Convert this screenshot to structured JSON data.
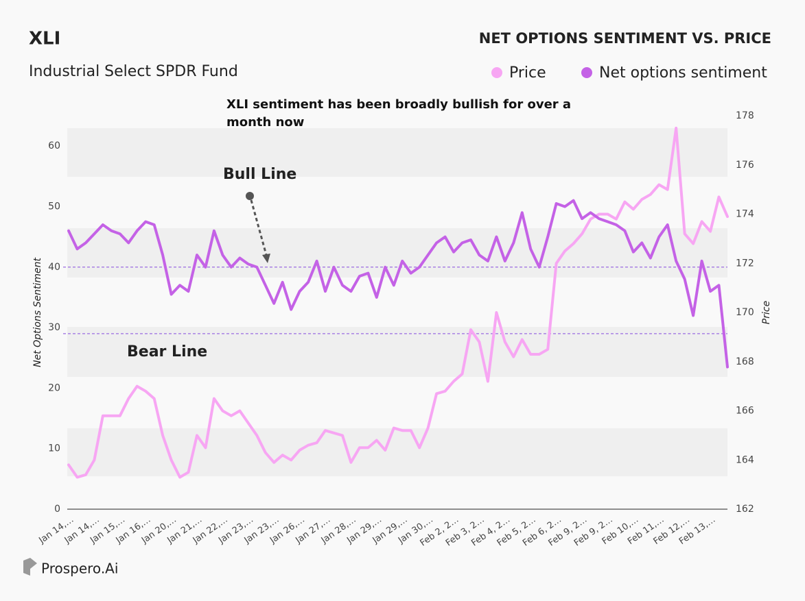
{
  "chart_data": {
    "type": "line",
    "title": "XLI",
    "subtitle": "Industrial Select SPDR Fund",
    "chart_title": "NET OPTIONS SENTIMENT VS. PRICE",
    "annotation": "XLI sentiment has been broadly bullish for over a month now",
    "y_label": "Net Options Sentiment",
    "y2_label": "Price",
    "branding": "Prospero.Ai",
    "categories": [
      "Jan 14,…",
      null,
      null,
      "Jan 14,…",
      null,
      null,
      "Jan 15,…",
      null,
      null,
      "Jan 16,…",
      null,
      null,
      "Jan 20,…",
      null,
      null,
      "Jan 21,…",
      null,
      null,
      "Jan 22,…",
      null,
      null,
      "Jan 23,…",
      null,
      null,
      "Jan 23,…",
      null,
      null,
      "Jan 26,…",
      null,
      null,
      "Jan 27,…",
      null,
      null,
      "Jan 28,…",
      null,
      null,
      "Jan 29,…",
      null,
      null,
      "Jan 29,…",
      null,
      null,
      "Jan 30,…",
      null,
      null,
      "Feb 2, 2…",
      null,
      null,
      "Feb 3, 2…",
      null,
      null,
      "Feb 4, 2…",
      null,
      null,
      "Feb 5, 2…",
      null,
      null,
      "Feb 6, 2…",
      null,
      null,
      "Feb 9, 2…",
      null,
      null,
      "Feb 9, 2…",
      null,
      null,
      "Feb 10,…",
      null,
      null,
      "Feb 11,…",
      null,
      null,
      "Feb 12,…",
      null,
      null,
      "Feb 13,…",
      null,
      null
    ],
    "series": [
      {
        "name": "Price",
        "color": "#f7a6f3",
        "axis": "y2",
        "values": [
          163.8,
          163.3,
          163.4,
          164,
          165.8,
          165.8,
          165.8,
          166.5,
          167,
          166.8,
          166.5,
          165,
          164,
          163.3,
          163.5,
          165,
          164.5,
          166.5,
          166,
          165.8,
          166,
          165.5,
          165,
          164.3,
          163.9,
          164.2,
          164,
          164.4,
          164.6,
          164.7,
          165.2,
          165.1,
          165,
          163.9,
          164.5,
          164.5,
          164.8,
          164.4,
          165.3,
          165.2,
          165.2,
          164.5,
          165.3,
          166.7,
          166.8,
          167.2,
          167.5,
          169.3,
          168.8,
          167.2,
          170,
          168.8,
          168.2,
          168.9,
          168.3,
          168.3,
          168.5,
          172,
          172.5,
          172.8,
          173.2,
          173.8,
          174,
          174,
          173.8,
          174.5,
          174.2,
          174.6,
          174.8,
          175.2,
          175,
          177.5,
          173.2,
          172.8,
          173.7,
          173.3,
          174.7,
          173.9
        ]
      },
      {
        "name": "Net options sentiment",
        "color": "#c462e6",
        "values": [
          46,
          43,
          44,
          45.5,
          47,
          46,
          45.5,
          44,
          46,
          47.5,
          47,
          42,
          35.5,
          37,
          36,
          42,
          40,
          46,
          42,
          40,
          41.5,
          40.5,
          40,
          37,
          34,
          37.5,
          33,
          36,
          37.5,
          41,
          36,
          40,
          37,
          36,
          38.5,
          39,
          35,
          40,
          37,
          41,
          39,
          40,
          42,
          44,
          45,
          42.5,
          44,
          44.5,
          42,
          41,
          45,
          41,
          44,
          49,
          43,
          40,
          45,
          50.5,
          50,
          51,
          48,
          49,
          48,
          47.5,
          47,
          46,
          42.5,
          44,
          41.5,
          45,
          47,
          41,
          38,
          32,
          41,
          36,
          37,
          23.5
        ]
      }
    ],
    "reference_lines": [
      {
        "label": "Bull Line",
        "value": 40
      },
      {
        "label": "Bear Line",
        "value": 29
      }
    ],
    "ylim": [
      0,
      65
    ],
    "yticks": [
      0,
      10,
      20,
      30,
      40,
      50,
      60
    ],
    "y2lim": [
      162,
      178
    ],
    "y2ticks": [
      162,
      164,
      166,
      168,
      170,
      172,
      174,
      176,
      178
    ]
  }
}
